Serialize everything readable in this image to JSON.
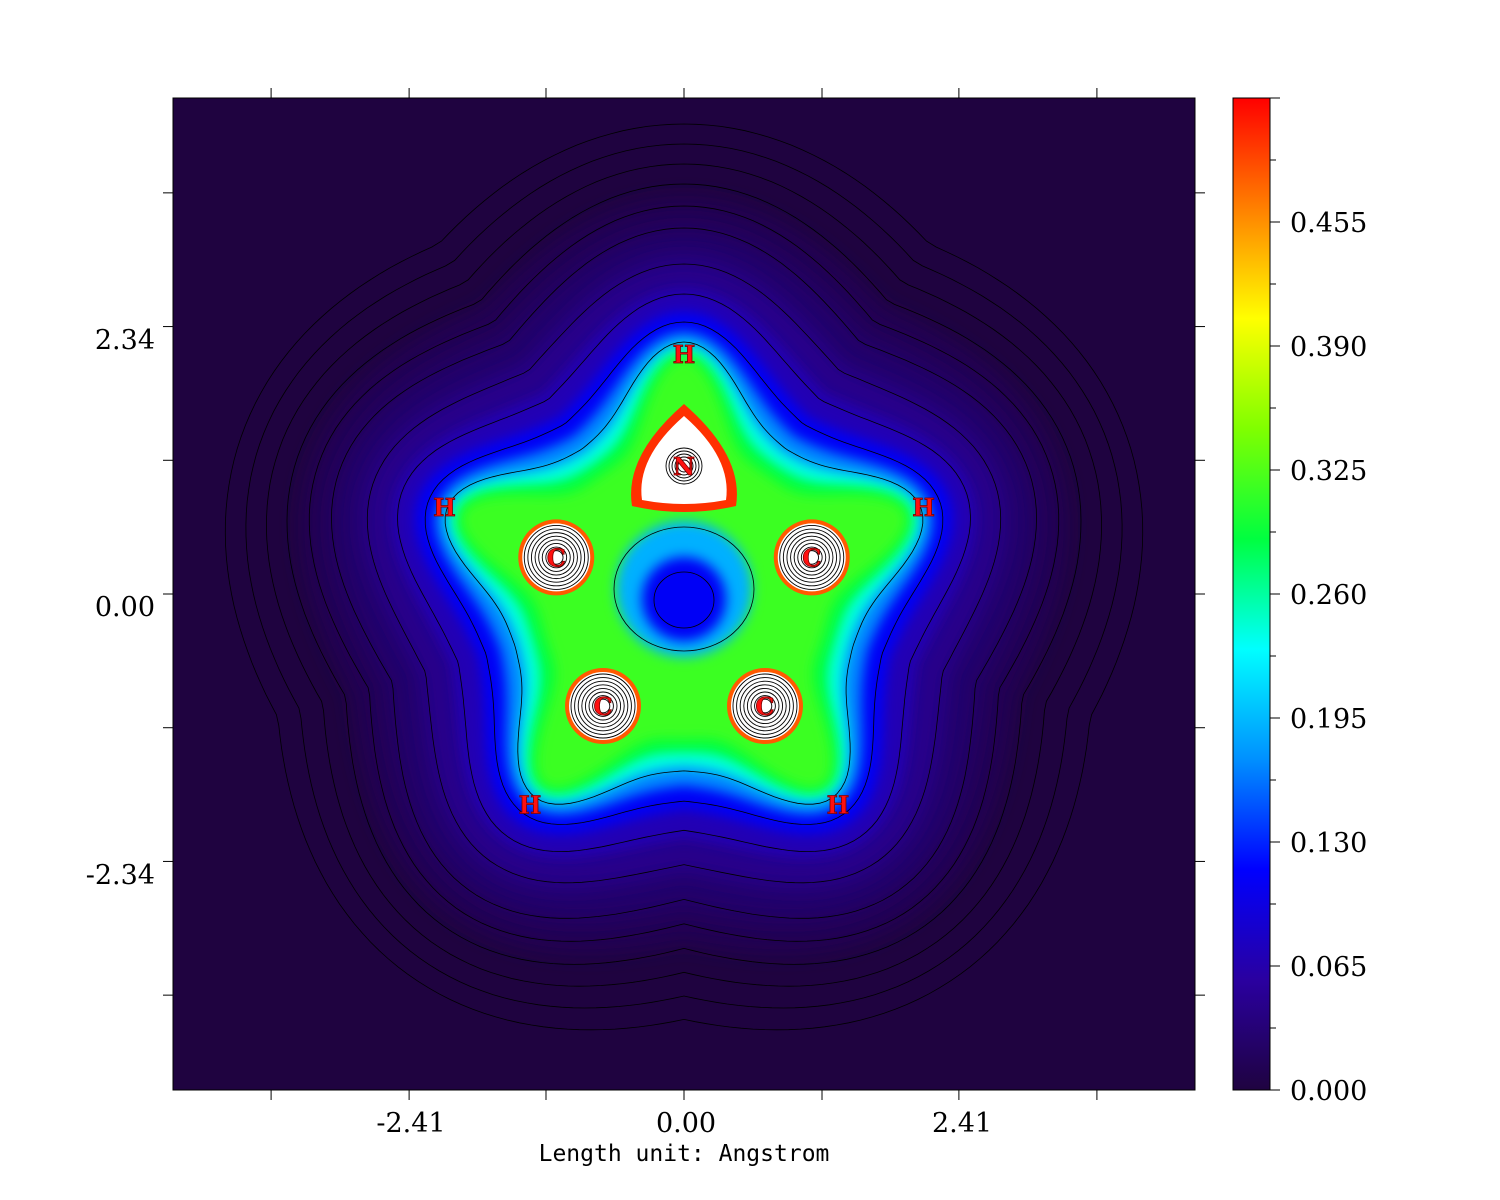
{
  "chart_data": {
    "type": "heatmap",
    "title": "",
    "xlabel": "Length unit: Angstrom",
    "ylabel": "",
    "x_ticks": [
      "-2.41",
      "0.00",
      "2.41"
    ],
    "x_tick_values": [
      -2.41,
      0.0,
      2.41
    ],
    "y_ticks": [
      "2.34",
      "0.00",
      "-2.34"
    ],
    "y_tick_values": [
      2.34,
      0.0,
      -2.34
    ],
    "xlim": [
      -4.48,
      4.48
    ],
    "ylim": [
      -4.34,
      4.34
    ],
    "colorbar": {
      "min": 0.0,
      "max": 0.52,
      "tick_labels": [
        "0.455",
        "0.390",
        "0.325",
        "0.260",
        "0.195",
        "0.130",
        "0.065",
        "0.000"
      ],
      "tick_values": [
        0.455,
        0.39,
        0.325,
        0.26,
        0.195,
        0.13,
        0.065,
        0.0
      ],
      "colormap": [
        "#1f0340",
        "#2a00a0",
        "#0000ff",
        "#0090ff",
        "#00ffff",
        "#00ff40",
        "#80ff00",
        "#ffff00",
        "#ff8000",
        "#ff0000"
      ]
    },
    "above_max_color": "#ffffff",
    "contour_lines": "black",
    "atoms": [
      {
        "label": "N",
        "x": 0.0,
        "y": 1.12
      },
      {
        "label": "C",
        "x": -1.12,
        "y": 0.32
      },
      {
        "label": "C",
        "x": 1.12,
        "y": 0.32
      },
      {
        "label": "C",
        "x": -0.71,
        "y": -0.98
      },
      {
        "label": "C",
        "x": 0.71,
        "y": -0.98
      },
      {
        "label": "H",
        "x": 0.0,
        "y": 2.1
      },
      {
        "label": "H",
        "x": -2.1,
        "y": 0.76
      },
      {
        "label": "H",
        "x": 2.1,
        "y": 0.76
      },
      {
        "label": "H",
        "x": -1.35,
        "y": -1.84
      },
      {
        "label": "H",
        "x": 1.35,
        "y": -1.84
      }
    ]
  }
}
